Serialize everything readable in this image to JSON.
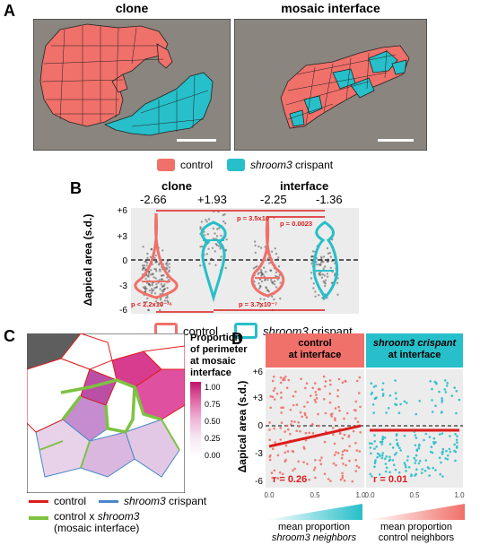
{
  "panel_a": {
    "letter": "A",
    "titles": [
      "clone",
      "mosaic interface"
    ]
  },
  "legend_a": {
    "items": [
      {
        "label": "control",
        "italic": "",
        "color": "#f0706a"
      },
      {
        "label": " crispant",
        "italic": "shroom3",
        "color": "#27bfc9"
      }
    ]
  },
  "panel_b": {
    "letter": "B",
    "headers": [
      "clone",
      "interface"
    ],
    "medians": [
      "-2.66",
      "+1.93",
      "-2.25",
      "-1.36"
    ],
    "ylabel": "Δapical area (s.d.)",
    "yticks": [
      "+6",
      "+3",
      "0",
      "-3",
      "-6"
    ],
    "pvalues": [
      "p = 3.5x10⁻⁷",
      "p = 0.0023",
      "p < 2.2x10⁻¹⁶",
      "p = 3.7x10⁻⁷"
    ],
    "legend": [
      {
        "label": "control",
        "italic": "",
        "color": "#f0706a"
      },
      {
        "label": " crispant",
        "italic": "shroom3",
        "color": "#27bfc9"
      }
    ]
  },
  "panel_c": {
    "letter": "C",
    "colorbar_title": [
      "Proportion",
      "of perimeter",
      "at mosaic",
      "interface"
    ],
    "colorbar_ticks": [
      "1.00",
      "0.75",
      "0.50",
      "0.25",
      "0.00"
    ],
    "legend": [
      {
        "label": "control",
        "italic": "",
        "color": "#dd1c1c"
      },
      {
        "label": " crispant",
        "italic": "shroom3",
        "color": "#4a87c8"
      },
      {
        "label": "control x ",
        "italic": "shroom3",
        "label2": "(mosaic interface)",
        "color": "#7dc242"
      }
    ]
  },
  "panel_d": {
    "letter": "D",
    "facet_titles": [
      [
        "control",
        "at interface"
      ],
      [
        "shroom3 crispant",
        "at interface"
      ]
    ],
    "ylabel": "Δapical area (s.d.)",
    "yticks": [
      "+6",
      "+3",
      "0",
      "-3",
      "-6"
    ],
    "xticks": [
      "0.0",
      "0.5",
      "1.0"
    ],
    "r_values": [
      "r = 0.26",
      "r = 0.01"
    ],
    "xlabels": [
      [
        "mean proportion",
        "shroom3 neighbors"
      ],
      [
        "mean proportion",
        "control neighbors"
      ]
    ]
  },
  "chart_data": [
    {
      "type": "violin",
      "title": "",
      "ylabel": "Δapical area (s.d.)",
      "ylim": [
        -6,
        6
      ],
      "categories": [
        "clone control",
        "clone shroom3 crispant",
        "interface control",
        "interface shroom3 crispant"
      ],
      "medians": [
        -2.66,
        1.93,
        -2.25,
        -1.36
      ],
      "comparisons": [
        {
          "groups": [
            "clone control",
            "clone shroom3 crispant"
          ],
          "p": "p < 2.2x10⁻¹⁶"
        },
        {
          "groups": [
            "clone shroom3 crispant",
            "interface shroom3 crispant"
          ],
          "p": "p = 3.7x10⁻⁷"
        },
        {
          "groups": [
            "clone control",
            "interface shroom3 crispant"
          ],
          "p": "p = 3.5x10⁻⁷"
        },
        {
          "groups": [
            "interface control",
            "interface shroom3 crispant"
          ],
          "p": "p = 0.0023"
        }
      ]
    },
    {
      "type": "scatter",
      "facets": [
        "control at interface",
        "shroom3 crispant at interface"
      ],
      "ylim": [
        -6,
        6
      ],
      "xlim": [
        0,
        1
      ],
      "fits": [
        {
          "facet": "control at interface",
          "r": 0.26,
          "y_at_x0": -2.3,
          "y_at_x1": 0.0
        },
        {
          "facet": "shroom3 crispant at interface",
          "r": 0.01,
          "y_at_x0": -0.6,
          "y_at_x1": -0.6
        }
      ]
    }
  ]
}
